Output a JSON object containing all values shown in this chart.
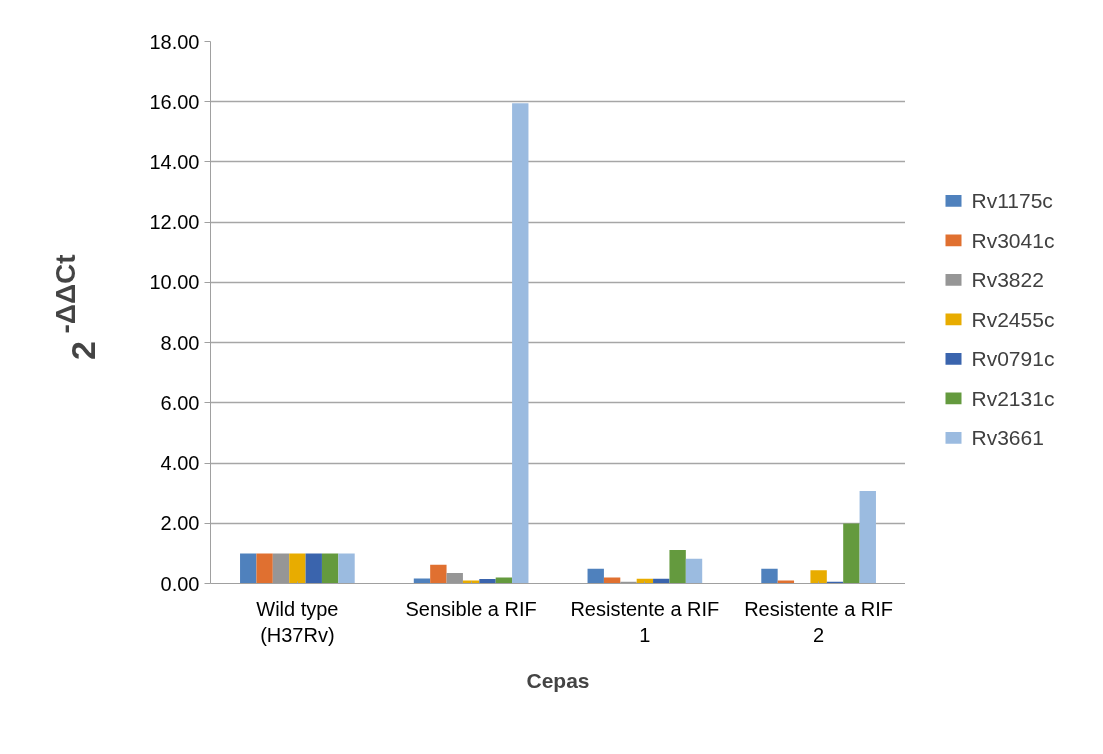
{
  "chart_data": {
    "type": "bar",
    "xlabel": "Cepas",
    "ylabel": "2$^{-ΔΔCt}$",
    "categories": [
      "Wild type (H37Rv)",
      "Sensible a RIF",
      "Resistente a RIF 1",
      "Resistente a RIF 2"
    ],
    "series": [
      {
        "name": "Rv1175c",
        "color": "#4f81bd",
        "values": [
          1.0,
          0.17,
          0.49,
          0.49
        ]
      },
      {
        "name": "Rv3041c",
        "color": "#e07030",
        "values": [
          1.0,
          0.62,
          0.2,
          0.1
        ]
      },
      {
        "name": "Rv3822",
        "color": "#969696",
        "values": [
          1.0,
          0.35,
          0.06,
          0.01
        ]
      },
      {
        "name": "Rv2455c",
        "color": "#e8ac00",
        "values": [
          1.0,
          0.1,
          0.16,
          0.44
        ]
      },
      {
        "name": "Rv0791c",
        "color": "#3a64ad",
        "values": [
          1.0,
          0.15,
          0.16,
          0.06
        ]
      },
      {
        "name": "Rv2131c",
        "color": "#649a3e",
        "values": [
          1.0,
          0.2,
          1.11,
          1.99
        ]
      },
      {
        "name": "Rv3661",
        "color": "#9bbbe0",
        "values": [
          1.0,
          15.95,
          0.82,
          3.07
        ]
      }
    ],
    "ylim": [
      0,
      18
    ],
    "yticks": [
      {
        "value": 0,
        "label": "0.00"
      },
      {
        "value": 2,
        "label": "2.00"
      },
      {
        "value": 4,
        "label": "4.00"
      },
      {
        "value": 6,
        "label": "6.00"
      },
      {
        "value": 8,
        "label": "8.00"
      },
      {
        "value": 10,
        "label": "10.00"
      },
      {
        "value": 12,
        "label": "12.00"
      },
      {
        "value": 14,
        "label": "14.00"
      },
      {
        "value": 16,
        "label": "16.00"
      },
      {
        "value": 18,
        "label": "18.00"
      }
    ],
    "grid": "y",
    "legend": "right"
  }
}
